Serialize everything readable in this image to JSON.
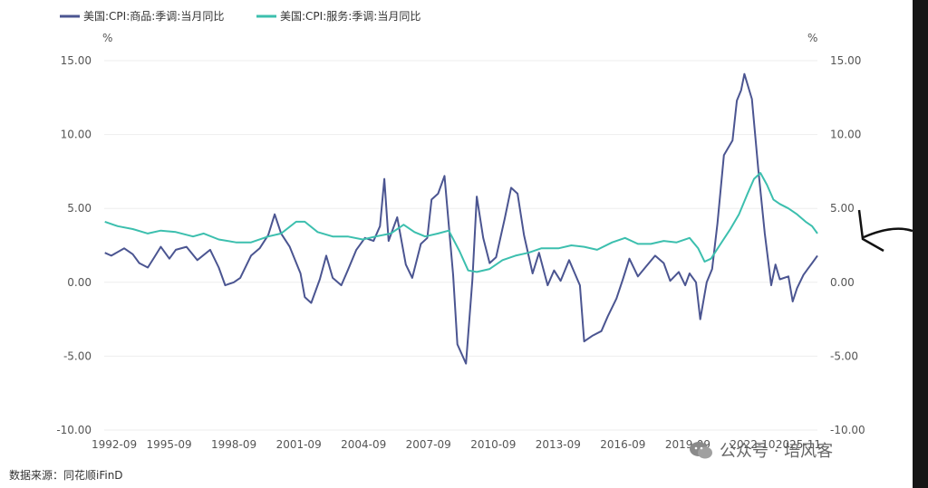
{
  "legend": [
    {
      "name": "美国:CPI:商品:季调:当月同比",
      "color": "#4b5591"
    },
    {
      "name": "美国:CPI:服务:季调:当月同比",
      "color": "#3cbfae"
    }
  ],
  "unit_left": "%",
  "unit_right": "%",
  "source": "数据来源：同花顺iFinD",
  "watermark": "公众号 · 培风客",
  "chart_data": {
    "type": "line",
    "title": "",
    "x_range": [
      "1992-09",
      "2025-11"
    ],
    "x_ticks": [
      "1992-09",
      "1995-09",
      "1998-09",
      "2001-09",
      "2004-09",
      "2007-09",
      "2010-09",
      "2013-09",
      "2016-09",
      "2019-09",
      "2022-10",
      "2025-11"
    ],
    "y_ticks": [
      "15.00",
      "10.00",
      "5.00",
      "0.00",
      "-5.00",
      "-10.00"
    ],
    "ylim": [
      -10,
      15
    ],
    "series": [
      {
        "name": "美国:CPI:商品:季调:当月同比",
        "color": "#4b5591",
        "points": [
          [
            1992.7,
            2.0
          ],
          [
            1993.0,
            1.8
          ],
          [
            1993.6,
            2.3
          ],
          [
            1994.0,
            1.9
          ],
          [
            1994.3,
            1.3
          ],
          [
            1994.7,
            1.0
          ],
          [
            1995.0,
            1.7
          ],
          [
            1995.3,
            2.4
          ],
          [
            1995.7,
            1.6
          ],
          [
            1996.0,
            2.2
          ],
          [
            1996.5,
            2.4
          ],
          [
            1997.0,
            1.5
          ],
          [
            1997.6,
            2.2
          ],
          [
            1998.0,
            1.0
          ],
          [
            1998.3,
            -0.2
          ],
          [
            1998.7,
            0.0
          ],
          [
            1999.0,
            0.3
          ],
          [
            1999.5,
            1.8
          ],
          [
            1999.9,
            2.3
          ],
          [
            2000.3,
            3.2
          ],
          [
            2000.6,
            4.6
          ],
          [
            2000.9,
            3.3
          ],
          [
            2001.3,
            2.4
          ],
          [
            2001.8,
            0.6
          ],
          [
            2002.0,
            -1.0
          ],
          [
            2002.3,
            -1.4
          ],
          [
            2002.7,
            0.2
          ],
          [
            2003.0,
            1.8
          ],
          [
            2003.3,
            0.3
          ],
          [
            2003.7,
            -0.2
          ],
          [
            2004.0,
            0.8
          ],
          [
            2004.4,
            2.2
          ],
          [
            2004.8,
            3.0
          ],
          [
            2005.2,
            2.8
          ],
          [
            2005.5,
            3.8
          ],
          [
            2005.7,
            7.0
          ],
          [
            2005.9,
            2.8
          ],
          [
            2006.3,
            4.4
          ],
          [
            2006.7,
            1.2
          ],
          [
            2007.0,
            0.3
          ],
          [
            2007.4,
            2.6
          ],
          [
            2007.7,
            3.0
          ],
          [
            2007.9,
            5.6
          ],
          [
            2008.2,
            6.0
          ],
          [
            2008.5,
            7.2
          ],
          [
            2008.9,
            0.5
          ],
          [
            2009.1,
            -4.2
          ],
          [
            2009.5,
            -5.5
          ],
          [
            2009.8,
            0.2
          ],
          [
            2010.0,
            5.8
          ],
          [
            2010.3,
            3.0
          ],
          [
            2010.6,
            1.3
          ],
          [
            2010.9,
            1.7
          ],
          [
            2011.3,
            4.3
          ],
          [
            2011.6,
            6.4
          ],
          [
            2011.9,
            6.0
          ],
          [
            2012.2,
            3.2
          ],
          [
            2012.6,
            0.6
          ],
          [
            2012.9,
            2.0
          ],
          [
            2013.3,
            -0.2
          ],
          [
            2013.6,
            0.8
          ],
          [
            2013.9,
            0.1
          ],
          [
            2014.3,
            1.5
          ],
          [
            2014.8,
            -0.2
          ],
          [
            2015.0,
            -4.0
          ],
          [
            2015.4,
            -3.6
          ],
          [
            2015.8,
            -3.3
          ],
          [
            2016.1,
            -2.3
          ],
          [
            2016.5,
            -1.1
          ],
          [
            2016.8,
            0.2
          ],
          [
            2017.1,
            1.6
          ],
          [
            2017.5,
            0.4
          ],
          [
            2017.9,
            1.1
          ],
          [
            2018.3,
            1.8
          ],
          [
            2018.7,
            1.3
          ],
          [
            2019.0,
            0.1
          ],
          [
            2019.4,
            0.7
          ],
          [
            2019.7,
            -0.2
          ],
          [
            2019.9,
            0.6
          ],
          [
            2020.2,
            0.0
          ],
          [
            2020.4,
            -2.5
          ],
          [
            2020.7,
            0.0
          ],
          [
            2020.95,
            0.9
          ],
          [
            2021.2,
            4.0
          ],
          [
            2021.5,
            8.6
          ],
          [
            2021.9,
            9.6
          ],
          [
            2022.1,
            12.3
          ],
          [
            2022.3,
            13.0
          ],
          [
            2022.45,
            14.1
          ],
          [
            2022.8,
            12.4
          ],
          [
            2023.1,
            7.6
          ],
          [
            2023.4,
            3.3
          ],
          [
            2023.7,
            -0.2
          ],
          [
            2023.9,
            1.2
          ],
          [
            2024.1,
            0.2
          ],
          [
            2024.5,
            0.4
          ],
          [
            2024.7,
            -1.3
          ],
          [
            2024.9,
            -0.4
          ],
          [
            2025.2,
            0.5
          ],
          [
            2025.4,
            0.9
          ],
          [
            2025.6,
            1.3
          ],
          [
            2025.85,
            1.8
          ]
        ]
      },
      {
        "name": "美国:CPI:服务:季调:当月同比",
        "color": "#3cbfae",
        "points": [
          [
            1992.7,
            4.1
          ],
          [
            1993.3,
            3.8
          ],
          [
            1994.0,
            3.6
          ],
          [
            1994.7,
            3.3
          ],
          [
            1995.3,
            3.5
          ],
          [
            1996.0,
            3.4
          ],
          [
            1996.8,
            3.1
          ],
          [
            1997.3,
            3.3
          ],
          [
            1998.0,
            2.9
          ],
          [
            1998.8,
            2.7
          ],
          [
            1999.5,
            2.7
          ],
          [
            2000.3,
            3.1
          ],
          [
            2000.9,
            3.3
          ],
          [
            2001.6,
            4.1
          ],
          [
            2002.0,
            4.1
          ],
          [
            2002.6,
            3.4
          ],
          [
            2003.3,
            3.1
          ],
          [
            2004.0,
            3.1
          ],
          [
            2004.7,
            2.9
          ],
          [
            2005.3,
            3.1
          ],
          [
            2006.0,
            3.3
          ],
          [
            2006.6,
            3.9
          ],
          [
            2007.1,
            3.4
          ],
          [
            2007.6,
            3.1
          ],
          [
            2008.2,
            3.3
          ],
          [
            2008.7,
            3.5
          ],
          [
            2009.2,
            2.1
          ],
          [
            2009.6,
            0.8
          ],
          [
            2010.0,
            0.7
          ],
          [
            2010.6,
            0.9
          ],
          [
            2011.2,
            1.5
          ],
          [
            2011.8,
            1.8
          ],
          [
            2012.4,
            2.0
          ],
          [
            2013.0,
            2.3
          ],
          [
            2013.8,
            2.3
          ],
          [
            2014.4,
            2.5
          ],
          [
            2015.0,
            2.4
          ],
          [
            2015.6,
            2.2
          ],
          [
            2016.3,
            2.7
          ],
          [
            2016.9,
            3.0
          ],
          [
            2017.5,
            2.6
          ],
          [
            2018.1,
            2.6
          ],
          [
            2018.7,
            2.8
          ],
          [
            2019.3,
            2.7
          ],
          [
            2019.9,
            3.0
          ],
          [
            2020.3,
            2.3
          ],
          [
            2020.6,
            1.4
          ],
          [
            2020.9,
            1.6
          ],
          [
            2021.3,
            2.5
          ],
          [
            2021.8,
            3.6
          ],
          [
            2022.2,
            4.6
          ],
          [
            2022.6,
            6.0
          ],
          [
            2022.9,
            7.0
          ],
          [
            2023.2,
            7.4
          ],
          [
            2023.5,
            6.6
          ],
          [
            2023.8,
            5.6
          ],
          [
            2024.1,
            5.3
          ],
          [
            2024.5,
            5.0
          ],
          [
            2024.9,
            4.6
          ],
          [
            2025.3,
            4.1
          ],
          [
            2025.6,
            3.8
          ],
          [
            2025.85,
            3.3
          ]
        ]
      }
    ]
  }
}
